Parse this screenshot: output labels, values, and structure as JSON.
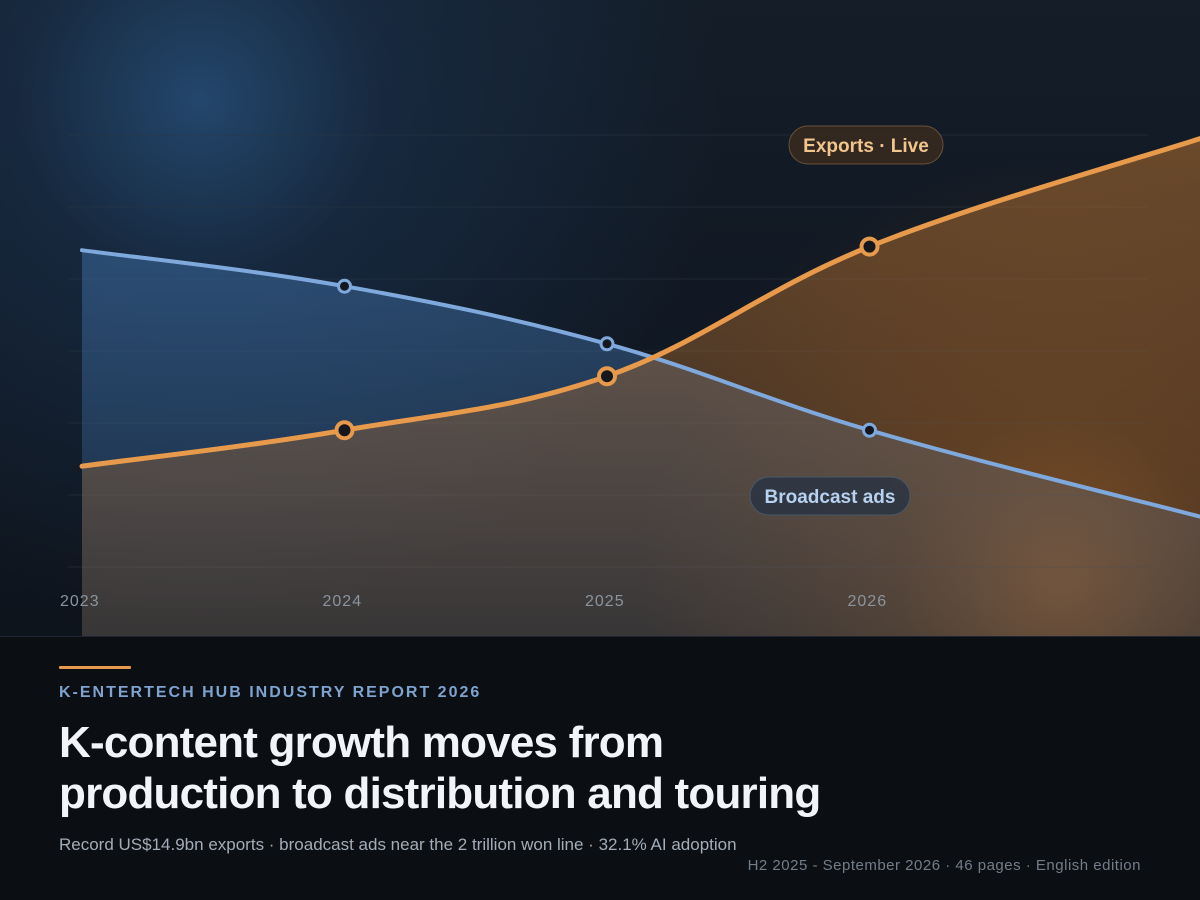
{
  "chart_data": {
    "type": "area",
    "categories": [
      "2023",
      "2024",
      "2025",
      "2026"
    ],
    "x_range": [
      "2023",
      "2027"
    ],
    "grid": true,
    "legend": "inline labels",
    "series": [
      {
        "name": "Broadcast ads",
        "values": [
          4.4,
          3.9,
          3.1,
          1.9
        ],
        "end_value": 0.7,
        "color": "#7fa9dd",
        "area_color": "#3c6a9e"
      },
      {
        "name": "Exports · Live",
        "values": [
          1.4,
          1.9,
          2.65,
          4.45
        ],
        "end_value": 5.95,
        "color": "#e89a4c",
        "area_color": "#a8692e"
      }
    ],
    "ylim": [
      0,
      6
    ]
  },
  "footer": {
    "kicker": "K-ENTERTECH HUB INDUSTRY REPORT 2026",
    "headline_line1": "K-content growth moves from",
    "headline_line2": "production to distribution and touring",
    "subline": "Record US$14.9bn exports · broadcast ads near the 2 trillion won line · 32.1% AI adoption",
    "meta": "H2 2025 - September 2026 · 46 pages · English edition",
    "accent_color": "#e89a4c"
  }
}
